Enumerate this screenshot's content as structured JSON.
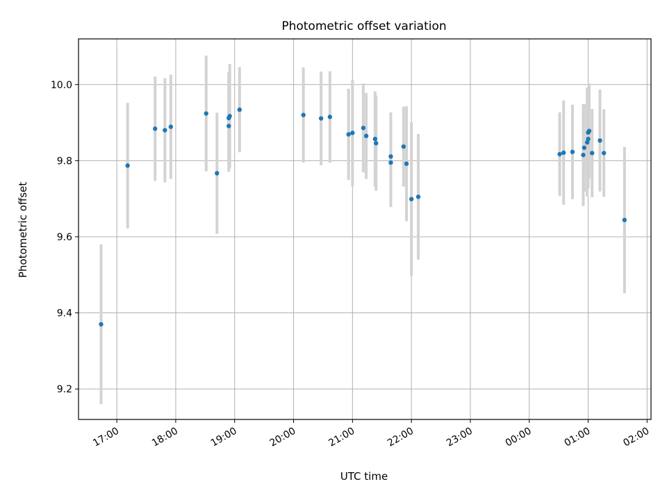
{
  "chart_data": {
    "type": "scatter",
    "title": "Photometric offset variation",
    "xlabel": "UTC time",
    "ylabel": "Photometric offset",
    "x_unit": "UTC",
    "xlim": [
      "2000-01-01T16:21",
      "2000-01-02T02:04"
    ],
    "ylim": [
      9.12,
      10.12
    ],
    "grid": true,
    "xticks": [
      {
        "t": "2000-01-01T17:00",
        "label": "17:00"
      },
      {
        "t": "2000-01-01T18:00",
        "label": "18:00"
      },
      {
        "t": "2000-01-01T19:00",
        "label": "19:00"
      },
      {
        "t": "2000-01-01T20:00",
        "label": "20:00"
      },
      {
        "t": "2000-01-01T21:00",
        "label": "21:00"
      },
      {
        "t": "2000-01-01T22:00",
        "label": "22:00"
      },
      {
        "t": "2000-01-01T23:00",
        "label": "23:00"
      },
      {
        "t": "2000-01-02T00:00",
        "label": "00:00"
      },
      {
        "t": "2000-01-02T01:00",
        "label": "01:00"
      },
      {
        "t": "2000-01-02T02:00",
        "label": "02:00"
      }
    ],
    "yticks": [
      {
        "v": 9.2,
        "label": "9.2"
      },
      {
        "v": 9.4,
        "label": "9.4"
      },
      {
        "v": 9.6,
        "label": "9.6"
      },
      {
        "v": 9.8,
        "label": "9.8"
      },
      {
        "v": 10.0,
        "label": "10.0"
      }
    ],
    "colors": {
      "point": "#1f77b4",
      "errorbar": "#d3d3d3",
      "grid": "#b0b0b0"
    },
    "points": [
      {
        "t": "2000-01-01T16:44",
        "y": 9.37,
        "err": 0.21
      },
      {
        "t": "2000-01-01T17:11",
        "y": 9.787,
        "err": 0.165
      },
      {
        "t": "2000-01-01T17:39",
        "y": 9.884,
        "err": 0.137
      },
      {
        "t": "2000-01-01T17:49",
        "y": 9.88,
        "err": 0.137
      },
      {
        "t": "2000-01-01T17:55",
        "y": 9.889,
        "err": 0.137
      },
      {
        "t": "2000-01-01T18:31",
        "y": 9.924,
        "err": 0.152
      },
      {
        "t": "2000-01-01T18:42",
        "y": 9.767,
        "err": 0.159
      },
      {
        "t": "2000-01-01T18:54",
        "y": 9.912,
        "err": 0.12
      },
      {
        "t": "2000-01-01T18:54",
        "y": 9.891,
        "err": 0.12
      },
      {
        "t": "2000-01-01T18:55",
        "y": 9.917,
        "err": 0.137
      },
      {
        "t": "2000-01-01T19:05",
        "y": 9.934,
        "err": 0.112
      },
      {
        "t": "2000-01-01T20:10",
        "y": 9.92,
        "err": 0.125
      },
      {
        "t": "2000-01-01T20:28",
        "y": 9.911,
        "err": 0.123
      },
      {
        "t": "2000-01-01T20:37",
        "y": 9.915,
        "err": 0.12
      },
      {
        "t": "2000-01-01T20:56",
        "y": 9.869,
        "err": 0.12
      },
      {
        "t": "2000-01-01T21:00",
        "y": 9.873,
        "err": 0.14
      },
      {
        "t": "2000-01-01T21:11",
        "y": 9.886,
        "err": 0.117
      },
      {
        "t": "2000-01-01T21:14",
        "y": 9.865,
        "err": 0.113
      },
      {
        "t": "2000-01-01T21:23",
        "y": 9.857,
        "err": 0.125
      },
      {
        "t": "2000-01-01T21:24",
        "y": 9.846,
        "err": 0.125
      },
      {
        "t": "2000-01-01T21:39",
        "y": 9.811,
        "err": 0.116
      },
      {
        "t": "2000-01-01T21:39",
        "y": 9.795,
        "err": 0.117
      },
      {
        "t": "2000-01-01T21:52",
        "y": 9.837,
        "err": 0.105
      },
      {
        "t": "2000-01-01T21:55",
        "y": 9.792,
        "err": 0.151
      },
      {
        "t": "2000-01-01T22:00",
        "y": 9.699,
        "err": 0.202
      },
      {
        "t": "2000-01-01T22:07",
        "y": 9.705,
        "err": 0.165
      },
      {
        "t": "2000-01-02T00:31",
        "y": 9.817,
        "err": 0.11
      },
      {
        "t": "2000-01-02T00:35",
        "y": 9.821,
        "err": 0.137
      },
      {
        "t": "2000-01-02T00:44",
        "y": 9.823,
        "err": 0.124
      },
      {
        "t": "2000-01-02T00:55",
        "y": 9.815,
        "err": 0.134
      },
      {
        "t": "2000-01-02T00:56",
        "y": 9.834,
        "err": 0.115
      },
      {
        "t": "2000-01-02T00:59",
        "y": 9.848,
        "err": 0.142
      },
      {
        "t": "2000-01-02T01:00",
        "y": 9.874,
        "err": 0.12
      },
      {
        "t": "2000-01-02T01:00",
        "y": 9.857,
        "err": 0.13
      },
      {
        "t": "2000-01-02T01:01",
        "y": 9.878,
        "err": 0.125
      },
      {
        "t": "2000-01-02T01:04",
        "y": 9.82,
        "err": 0.116
      },
      {
        "t": "2000-01-02T01:12",
        "y": 9.853,
        "err": 0.134
      },
      {
        "t": "2000-01-02T01:16",
        "y": 9.82,
        "err": 0.115
      },
      {
        "t": "2000-01-02T01:37",
        "y": 9.644,
        "err": 0.192
      }
    ]
  }
}
